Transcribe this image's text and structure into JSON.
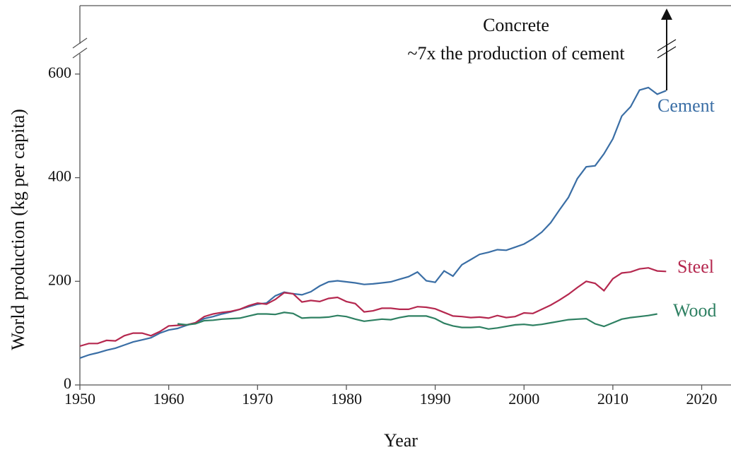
{
  "chart_data": {
    "type": "line",
    "xlabel": "Year",
    "ylabel": "World production (kg per capita)",
    "annotation": [
      "Concrete",
      "~7x the production of cement"
    ],
    "x": [
      1950,
      1951,
      1952,
      1953,
      1954,
      1955,
      1956,
      1957,
      1958,
      1959,
      1960,
      1961,
      1962,
      1963,
      1964,
      1965,
      1966,
      1967,
      1968,
      1969,
      1970,
      1971,
      1972,
      1973,
      1974,
      1975,
      1976,
      1977,
      1978,
      1979,
      1980,
      1981,
      1982,
      1983,
      1984,
      1985,
      1986,
      1987,
      1988,
      1989,
      1990,
      1991,
      1992,
      1993,
      1994,
      1995,
      1996,
      1997,
      1998,
      1999,
      2000,
      2001,
      2002,
      2003,
      2004,
      2005,
      2006,
      2007,
      2008,
      2009,
      2010,
      2011,
      2012,
      2013,
      2014,
      2015,
      2016
    ],
    "series": [
      {
        "name": "Cement",
        "color": "#3a6ea5",
        "values": [
          52,
          58,
          62,
          67,
          71,
          77,
          83,
          87,
          91,
          100,
          106,
          109,
          115,
          120,
          128,
          132,
          137,
          141,
          146,
          151,
          156,
          158,
          172,
          179,
          176,
          174,
          180,
          191,
          199,
          201,
          199,
          197,
          194,
          195,
          197,
          199,
          204,
          209,
          218,
          201,
          198,
          220,
          210,
          232,
          242,
          252,
          256,
          261,
          260,
          266,
          272,
          282,
          295,
          313,
          338,
          362,
          398,
          421,
          423,
          446,
          475,
          519,
          537,
          569,
          574,
          561,
          568
        ]
      },
      {
        "name": "Steel",
        "color": "#b5284f",
        "values": [
          75,
          80,
          80,
          86,
          85,
          95,
          100,
          100,
          95,
          103,
          114,
          115,
          116,
          120,
          132,
          137,
          140,
          142,
          146,
          153,
          158,
          156,
          165,
          178,
          176,
          160,
          163,
          161,
          167,
          169,
          161,
          157,
          141,
          143,
          148,
          148,
          146,
          146,
          151,
          150,
          147,
          140,
          133,
          132,
          130,
          131,
          129,
          134,
          130,
          132,
          139,
          138,
          146,
          154,
          164,
          175,
          188,
          200,
          196,
          182,
          205,
          216,
          218,
          224,
          226,
          220,
          219
        ]
      },
      {
        "name": "Wood",
        "color": "#2e8062",
        "values": [
          null,
          null,
          null,
          null,
          null,
          null,
          null,
          null,
          null,
          null,
          null,
          118,
          116,
          118,
          124,
          125,
          127,
          128,
          129,
          133,
          137,
          137,
          136,
          140,
          138,
          129,
          130,
          130,
          131,
          134,
          132,
          127,
          123,
          125,
          127,
          126,
          130,
          133,
          133,
          133,
          128,
          119,
          114,
          111,
          111,
          112,
          108,
          110,
          113,
          116,
          117,
          115,
          117,
          120,
          123,
          126,
          127,
          128,
          118,
          113,
          120,
          127,
          130,
          132,
          134,
          137,
          null
        ]
      }
    ],
    "xlim": [
      1950,
      2023.3
    ],
    "xticks": [
      1950,
      1960,
      1970,
      1980,
      1990,
      2000,
      2010,
      2020
    ],
    "ylim": [
      0,
      732
    ],
    "yticks": [
      0,
      200,
      400,
      600
    ],
    "grid": false
  }
}
